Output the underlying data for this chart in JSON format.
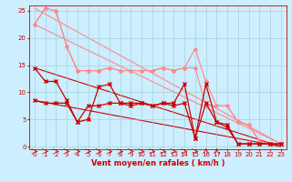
{
  "background_color": "#cceeff",
  "grid_color": "#99cccc",
  "xlabel": "Vent moyen/en rafales ( km/h )",
  "xlim": [
    -0.5,
    23.5
  ],
  "ylim": [
    -0.5,
    26
  ],
  "yticks": [
    0,
    5,
    10,
    15,
    20,
    25
  ],
  "xticks": [
    0,
    1,
    2,
    3,
    4,
    5,
    6,
    7,
    8,
    9,
    10,
    11,
    12,
    13,
    14,
    15,
    16,
    17,
    18,
    19,
    20,
    21,
    22,
    23
  ],
  "pink_upper": {
    "x": [
      0,
      1,
      2,
      3,
      4,
      5,
      6,
      7,
      8,
      9,
      10,
      11,
      12,
      13,
      14,
      15,
      16,
      17,
      18,
      19,
      20,
      21,
      22,
      23
    ],
    "y": [
      22.5,
      25.5,
      25.0,
      18.5,
      14.0,
      14.0,
      14.0,
      14.5,
      14.0,
      14.0,
      14.0,
      14.0,
      14.5,
      14.0,
      14.5,
      18.0,
      12.0,
      7.5,
      7.5,
      4.5,
      4.0,
      1.0,
      0.5,
      0.5
    ],
    "color": "#ff8888",
    "marker": "D",
    "markersize": 2.0,
    "linewidth": 0.8
  },
  "pink_lower": {
    "x": [
      0,
      1,
      2,
      3,
      4,
      5,
      6,
      7,
      8,
      9,
      10,
      11,
      12,
      13,
      14,
      15,
      16,
      17,
      18,
      19,
      20,
      21,
      22,
      23
    ],
    "y": [
      22.5,
      25.5,
      25.0,
      18.5,
      14.0,
      14.0,
      14.0,
      14.5,
      14.0,
      14.0,
      14.0,
      14.0,
      14.5,
      14.0,
      14.5,
      14.5,
      7.5,
      7.5,
      7.5,
      4.5,
      4.0,
      1.0,
      0.5,
      0.5
    ],
    "color": "#ff8888",
    "marker": "D",
    "markersize": 2.0,
    "linewidth": 0.8
  },
  "red_upper": {
    "x": [
      0,
      1,
      2,
      3,
      4,
      5,
      6,
      7,
      8,
      9,
      10,
      11,
      12,
      13,
      14,
      15,
      16,
      17,
      18,
      19,
      20,
      21,
      22,
      23
    ],
    "y": [
      14.5,
      12.0,
      12.0,
      8.5,
      4.5,
      5.0,
      11.0,
      11.5,
      8.0,
      8.0,
      8.0,
      7.5,
      8.0,
      8.0,
      11.5,
      1.5,
      11.5,
      4.5,
      4.0,
      0.5,
      0.5,
      0.5,
      0.5,
      0.5
    ],
    "color": "#cc0000",
    "marker": "x",
    "markersize": 3.5,
    "linewidth": 0.9
  },
  "red_lower": {
    "x": [
      0,
      1,
      2,
      3,
      4,
      5,
      6,
      7,
      8,
      9,
      10,
      11,
      12,
      13,
      14,
      15,
      16,
      17,
      18,
      19,
      20,
      21,
      22,
      23
    ],
    "y": [
      8.5,
      8.0,
      8.0,
      8.0,
      4.5,
      7.5,
      7.5,
      8.0,
      8.0,
      7.5,
      8.0,
      7.5,
      8.0,
      7.5,
      8.0,
      1.5,
      8.0,
      4.5,
      3.5,
      0.5,
      0.5,
      0.5,
      0.5,
      0.5
    ],
    "color": "#cc0000",
    "marker": "x",
    "markersize": 3.0,
    "linewidth": 0.9
  },
  "slope_pink_high": {
    "x": [
      0,
      23
    ],
    "y": [
      25.5,
      0.5
    ],
    "color": "#ff8888",
    "lw": 0.8
  },
  "slope_pink_low": {
    "x": [
      0,
      23
    ],
    "y": [
      22.5,
      0.5
    ],
    "color": "#ff8888",
    "lw": 0.8
  },
  "slope_red_high": {
    "x": [
      0,
      23
    ],
    "y": [
      14.5,
      0.0
    ],
    "color": "#cc0000",
    "lw": 0.8
  },
  "slope_red_low": {
    "x": [
      0,
      23
    ],
    "y": [
      8.5,
      0.0
    ],
    "color": "#cc0000",
    "lw": 0.8
  },
  "xlabel_fontsize": 6,
  "tick_fontsize": 5
}
